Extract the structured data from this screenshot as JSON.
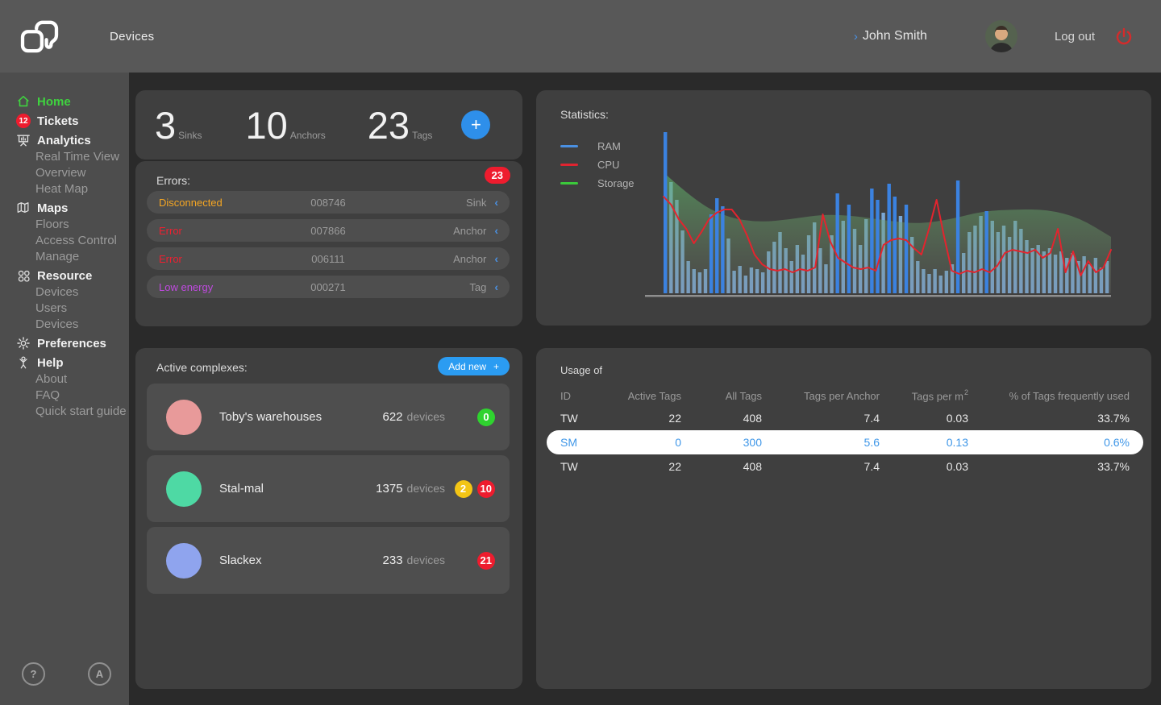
{
  "topbar": {
    "title": "Devices",
    "user_chevron": "›",
    "user": "John Smith",
    "logout": "Log out"
  },
  "sidebar": {
    "items": [
      {
        "label": "Home",
        "active": true,
        "color": "#3fd33f"
      },
      {
        "label": "Tickets",
        "badge": "12"
      },
      {
        "label": "Analytics",
        "children": [
          "Real Time View",
          "Overview",
          "Heat Map"
        ]
      },
      {
        "label": "Maps",
        "children": [
          "Floors",
          "Access Control",
          "Manage"
        ]
      },
      {
        "label": "Resource",
        "children": [
          "Devices",
          "Users",
          "Devices"
        ]
      },
      {
        "label": "Preferences"
      },
      {
        "label": "Help",
        "children": [
          "About",
          "FAQ",
          "Quick start guide"
        ]
      }
    ],
    "footer": {
      "help": "?",
      "accessibility": "A"
    }
  },
  "counters": {
    "items": [
      {
        "value": "3",
        "label": "Sinks"
      },
      {
        "value": "10",
        "label": "Anchors"
      },
      {
        "value": "23",
        "label": "Tags"
      }
    ],
    "add_plus": "+"
  },
  "errors": {
    "title": "Errors:",
    "badge": "23",
    "chevron": "‹",
    "rows": [
      {
        "status": "Disconnected",
        "color": "#f5a623",
        "id": "008746",
        "type": "Sink"
      },
      {
        "status": "Error",
        "color": "#ee2030",
        "id": "007866",
        "type": "Anchor"
      },
      {
        "status": "Error",
        "color": "#ee2030",
        "id": "006111",
        "type": "Anchor"
      },
      {
        "status": "Low energy",
        "color": "#c04ae0",
        "id": "000271",
        "type": "Tag"
      }
    ]
  },
  "statistics": {
    "title": "Statistics:",
    "legend": [
      {
        "label": "RAM",
        "color": "#4a90e2"
      },
      {
        "label": "CPU",
        "color": "#e02430"
      },
      {
        "label": "Storage",
        "color": "#3bc93b"
      }
    ]
  },
  "chart_data": {
    "type": "bar",
    "title": "Statistics:",
    "ylim": [
      0,
      100
    ],
    "legend_position": "left",
    "x_axis_visible": true,
    "series": [
      {
        "name": "RAM",
        "type": "bar",
        "color_light": "#7fb0e2",
        "color_dark": "#3b82e0",
        "values": [
          100,
          69,
          58,
          39,
          20,
          15,
          13,
          15,
          49,
          59,
          54,
          34,
          14,
          17,
          11,
          16,
          15,
          13,
          26,
          32,
          38,
          28,
          20,
          30,
          24,
          36,
          44,
          28,
          18,
          36,
          62,
          45,
          55,
          40,
          30,
          46,
          65,
          58,
          50,
          68,
          60,
          48,
          55,
          35,
          20,
          15,
          12,
          15,
          11,
          14,
          18,
          70,
          25,
          38,
          42,
          48,
          51,
          45,
          38,
          42,
          35,
          45,
          40,
          33,
          28,
          30,
          26,
          28,
          24,
          26,
          22,
          25,
          20,
          23,
          18,
          22,
          16,
          20
        ],
        "dark_indices": [
          0,
          8,
          9,
          10,
          30,
          32,
          36,
          37,
          39,
          40,
          42,
          51,
          56
        ]
      },
      {
        "name": "CPU",
        "type": "line",
        "color": "#e3242e",
        "values": [
          60,
          55,
          46,
          40,
          31,
          38,
          46,
          50,
          52,
          52,
          46,
          36,
          24,
          18,
          15,
          14,
          15,
          13,
          15,
          14,
          16,
          49,
          32,
          22,
          19,
          16,
          15,
          16,
          14,
          30,
          33,
          34,
          33,
          28,
          24,
          40,
          58,
          35,
          14,
          12,
          14,
          13,
          15,
          13,
          17,
          25,
          27,
          26,
          25,
          27,
          22,
          25,
          40,
          13,
          26,
          11,
          20,
          13,
          16,
          27
        ]
      },
      {
        "name": "Storage",
        "type": "area",
        "color": "#5cb568",
        "values": [
          75,
          57,
          47,
          44,
          46,
          49,
          48,
          45,
          43,
          46,
          51,
          52,
          52,
          47,
          35
        ]
      }
    ]
  },
  "complexes": {
    "title": "Active complexes:",
    "add_label": "Add new",
    "add_plus": "+",
    "unit": "devices",
    "rows": [
      {
        "name": "Toby's warehouses",
        "count": "622",
        "avatar_color": "#e89a9a",
        "badges": [
          {
            "text": "0",
            "color": "#2fd32f"
          }
        ]
      },
      {
        "name": "Stal-mal",
        "count": "1375",
        "avatar_color": "#4ed9a4",
        "badges": [
          {
            "text": "2",
            "color": "#f3c515"
          },
          {
            "text": "10",
            "color": "#ee1c2e"
          }
        ]
      },
      {
        "name": "Slackex",
        "count": "233",
        "avatar_color": "#8fa4ee",
        "badges": [
          {
            "text": "21",
            "color": "#ee1c2e"
          }
        ]
      }
    ]
  },
  "usage": {
    "title": "Usage of",
    "headers": [
      "ID",
      "Active Tags",
      "All Tags",
      "Tags per Anchor",
      "Tags per m",
      "% of Tags frequently used"
    ],
    "sup": "2",
    "rows": [
      [
        "TW",
        "22",
        "408",
        "7.4",
        "0.03",
        "33.7%"
      ],
      [
        "SM",
        "0",
        "300",
        "5.6",
        "0.13",
        "0.6%"
      ],
      [
        "TW",
        "22",
        "408",
        "7.4",
        "0.03",
        "33.7%"
      ]
    ],
    "selected_row": 1
  }
}
